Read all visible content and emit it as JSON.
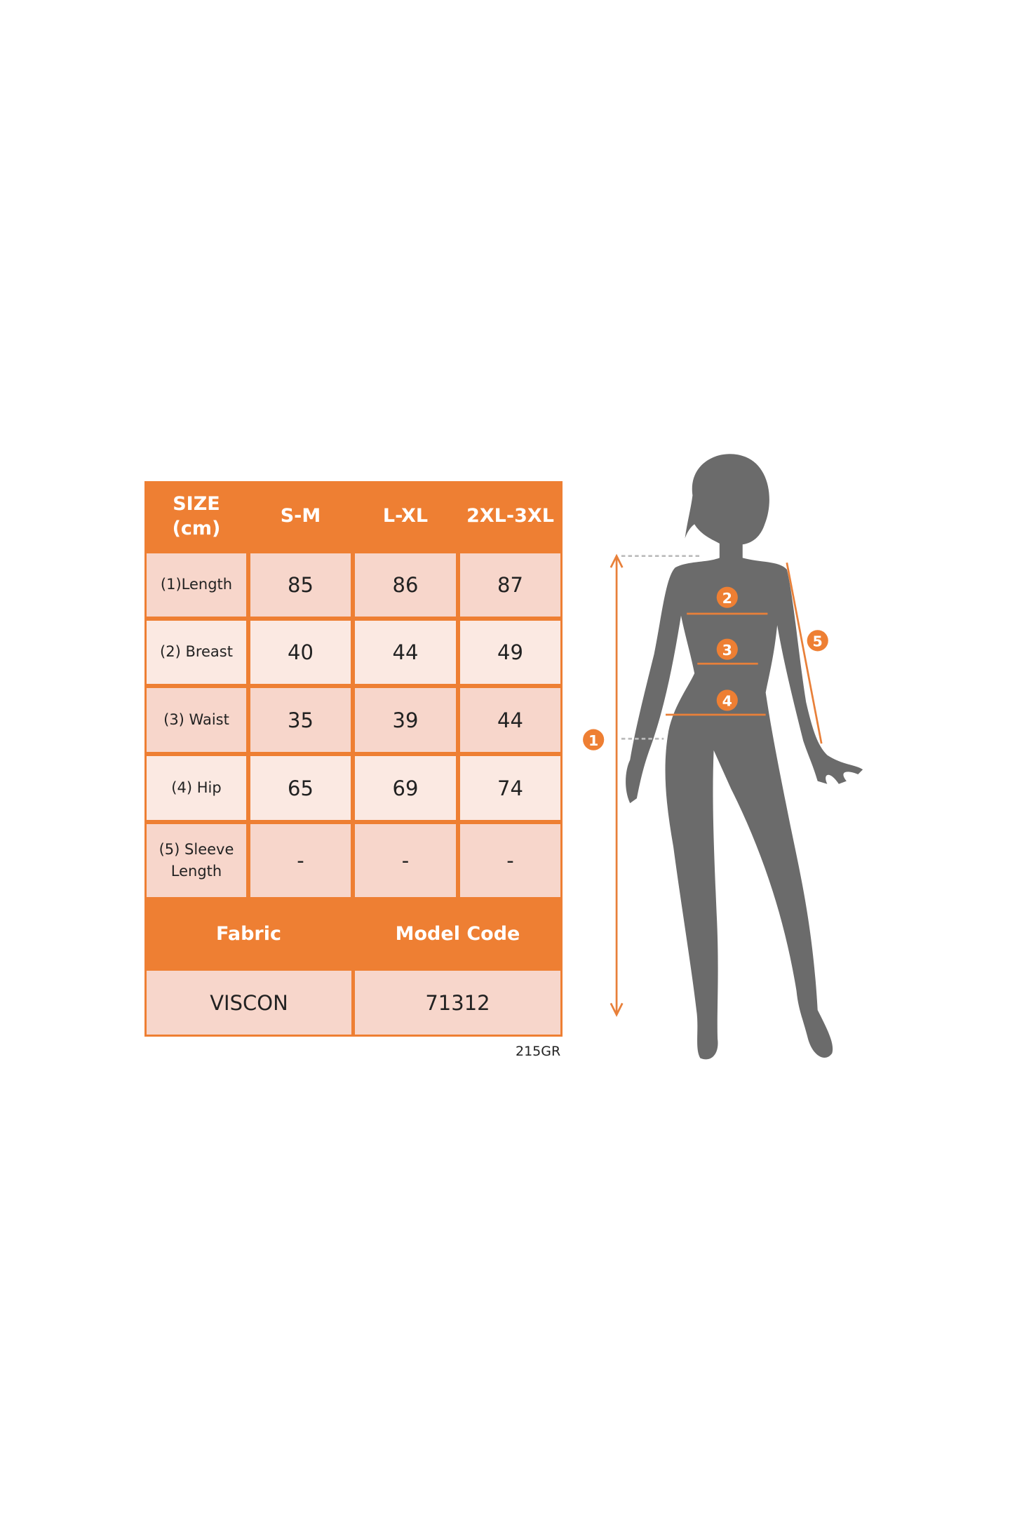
{
  "size_table": {
    "header": {
      "size_label": "SIZE\n(cm)",
      "columns": [
        "S-M",
        "L-XL",
        "2XL-3XL"
      ]
    },
    "rows": [
      {
        "label": "(1)Length",
        "values": [
          "85",
          "86",
          "87"
        ]
      },
      {
        "label": "(2) Breast",
        "values": [
          "40",
          "44",
          "49"
        ]
      },
      {
        "label": "(3) Waist",
        "values": [
          "35",
          "39",
          "44"
        ]
      },
      {
        "label": "(4) Hip",
        "values": [
          "65",
          "69",
          "74"
        ]
      },
      {
        "label": "(5) Sleeve\nLength",
        "values": [
          "-",
          "-",
          "-"
        ]
      }
    ],
    "info_headers": [
      "Fabric",
      "Model Code"
    ],
    "info_values": [
      "VISCON",
      "71312"
    ]
  },
  "product_code": "215GR",
  "figure": {
    "markers": [
      "1",
      "2",
      "3",
      "4",
      "5"
    ]
  },
  "colors": {
    "accent": "#ee7f33",
    "row_dark": "#f7d6cb",
    "row_light": "#fbe9e2",
    "silhouette": "#6b6b6b"
  }
}
